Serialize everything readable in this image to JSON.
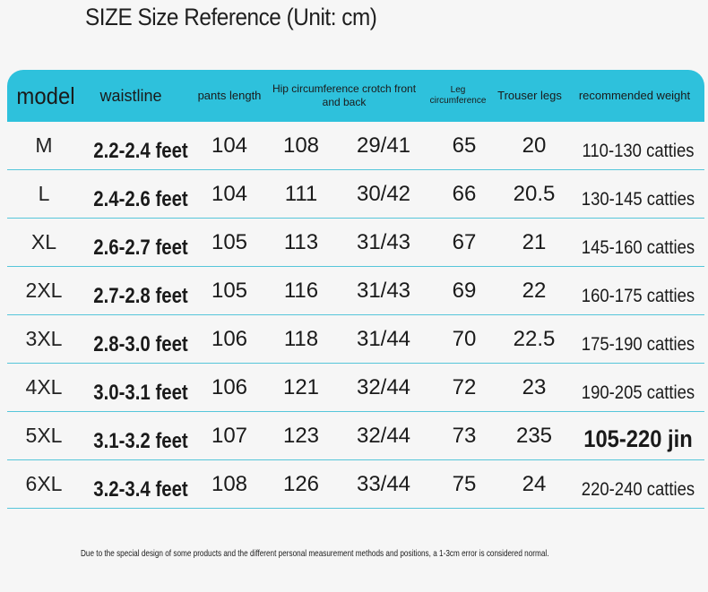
{
  "title": "SIZE Size Reference (Unit: cm)",
  "header": {
    "model": "model",
    "waistline": "waistline",
    "pants_length": "pants length",
    "hip_crotch": "Hip circumference crotch front and back",
    "leg_circumference": "Leg circumference",
    "trouser_legs": "Trouser legs",
    "recommended_weight": "recommended weight"
  },
  "rows": [
    {
      "model": "M",
      "waist": "2.2-2.4 feet",
      "length": "104",
      "hip": "108",
      "crotch": "29/41",
      "leg": "65",
      "trouser": "20",
      "weight": "110-130 catties"
    },
    {
      "model": "L",
      "waist": "2.4-2.6 feet",
      "length": "104",
      "hip": "111",
      "crotch": "30/42",
      "leg": "66",
      "trouser": "20.5",
      "weight": "130-145 catties"
    },
    {
      "model": "XL",
      "waist": "2.6-2.7 feet",
      "length": "105",
      "hip": "113",
      "crotch": "31/43",
      "leg": "67",
      "trouser": "21",
      "weight": "145-160 catties"
    },
    {
      "model": "2XL",
      "waist": "2.7-2.8 feet",
      "length": "105",
      "hip": "116",
      "crotch": "31/43",
      "leg": "69",
      "trouser": "22",
      "weight": "160-175 catties"
    },
    {
      "model": "3XL",
      "waist": "2.8-3.0 feet",
      "length": "106",
      "hip": "118",
      "crotch": "31/44",
      "leg": "70",
      "trouser": "22.5",
      "weight": "175-190 catties"
    },
    {
      "model": "4XL",
      "waist": "3.0-3.1 feet",
      "length": "106",
      "hip": "121",
      "crotch": "32/44",
      "leg": "72",
      "trouser": "23",
      "weight": "190-205 catties"
    },
    {
      "model": "5XL",
      "waist": "3.1-3.2 feet",
      "length": "107",
      "hip": "123",
      "crotch": "32/44",
      "leg": "73",
      "trouser": "235",
      "weight": "105-220 jin"
    },
    {
      "model": "6XL",
      "waist": "3.2-3.4 feet",
      "length": "108",
      "hip": "126",
      "crotch": "33/44",
      "leg": "75",
      "trouser": "24",
      "weight": "220-240 catties"
    }
  ],
  "footnote": "Due to the special design of some products and the different personal measurement methods and positions, a 1-3cm error is considered normal.",
  "colors": {
    "header_bg": "#2ec1dc",
    "row_divider": "#56c6da"
  }
}
